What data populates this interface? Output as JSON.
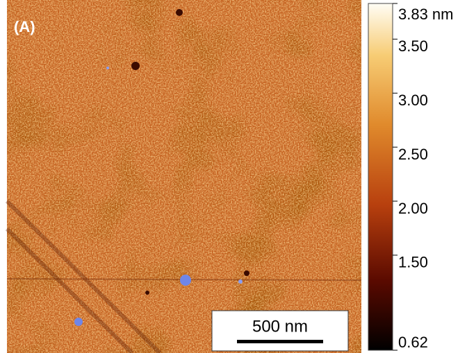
{
  "panel_label": "(A)",
  "scale_bar": {
    "label": "500 nm"
  },
  "colorbar": {
    "range": [
      0.62,
      3.83
    ],
    "ticks": [
      {
        "value": 3.83,
        "label": "3.83 nm"
      },
      {
        "value": 3.5,
        "label": "3.50"
      },
      {
        "value": 3,
        "label": "3.00"
      },
      {
        "value": 2.5,
        "label": "2.50"
      },
      {
        "value": 2,
        "label": "2.00"
      },
      {
        "value": 1.5,
        "label": "1.50"
      },
      {
        "value": 0.62,
        "label": "0.62"
      }
    ]
  }
}
